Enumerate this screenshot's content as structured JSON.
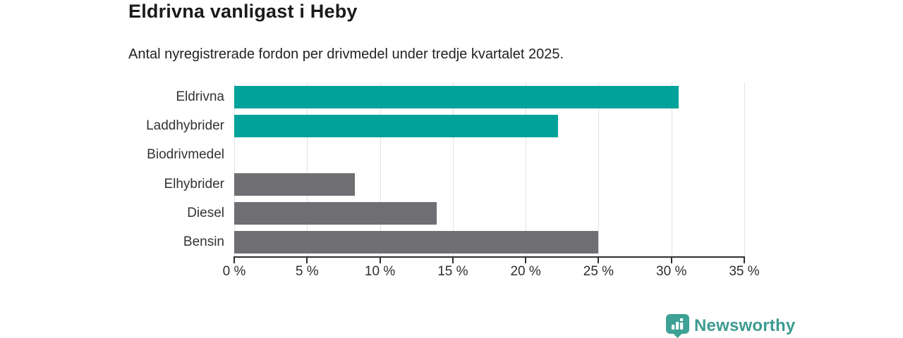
{
  "header": {
    "title": "Eldrivna vanligast i Heby",
    "subtitle": "Antal nyregistrerade fordon per drivmedel under tredje kvartalet 2025."
  },
  "chart_data": {
    "type": "bar",
    "orientation": "horizontal",
    "title": "Eldrivna vanligast i Heby",
    "subtitle": "Antal nyregistrerade fordon per drivmedel under tredje kvartalet 2025.",
    "categories": [
      "Eldrivna",
      "Laddhybrider",
      "Biodrivmedel",
      "Elhybrider",
      "Diesel",
      "Bensin"
    ],
    "values": [
      30.5,
      22.2,
      0,
      8.3,
      13.9,
      25
    ],
    "unit": "%",
    "bar_colors": [
      "#00a29a",
      "#00a29a",
      "#6e6e73",
      "#6e6e73",
      "#6e6e73",
      "#6e6e73"
    ],
    "highlight_color": "#00a29a",
    "default_color": "#6e6e73",
    "xlim": [
      0,
      35
    ],
    "x_ticks": [
      0,
      5,
      10,
      15,
      20,
      25,
      30,
      35
    ],
    "x_tick_labels": [
      "0 %",
      "5 %",
      "10 %",
      "15 %",
      "20 %",
      "25 %",
      "30 %",
      "35 %"
    ],
    "grid": true,
    "gridline_color": "#e2e2e2",
    "axis_color": "#2e2e2e",
    "legend": "none"
  },
  "footer": {
    "brand": "Newsworthy",
    "brand_color": "#3d9b91",
    "logo_icon": "newsworthy-chart-pin-icon"
  }
}
